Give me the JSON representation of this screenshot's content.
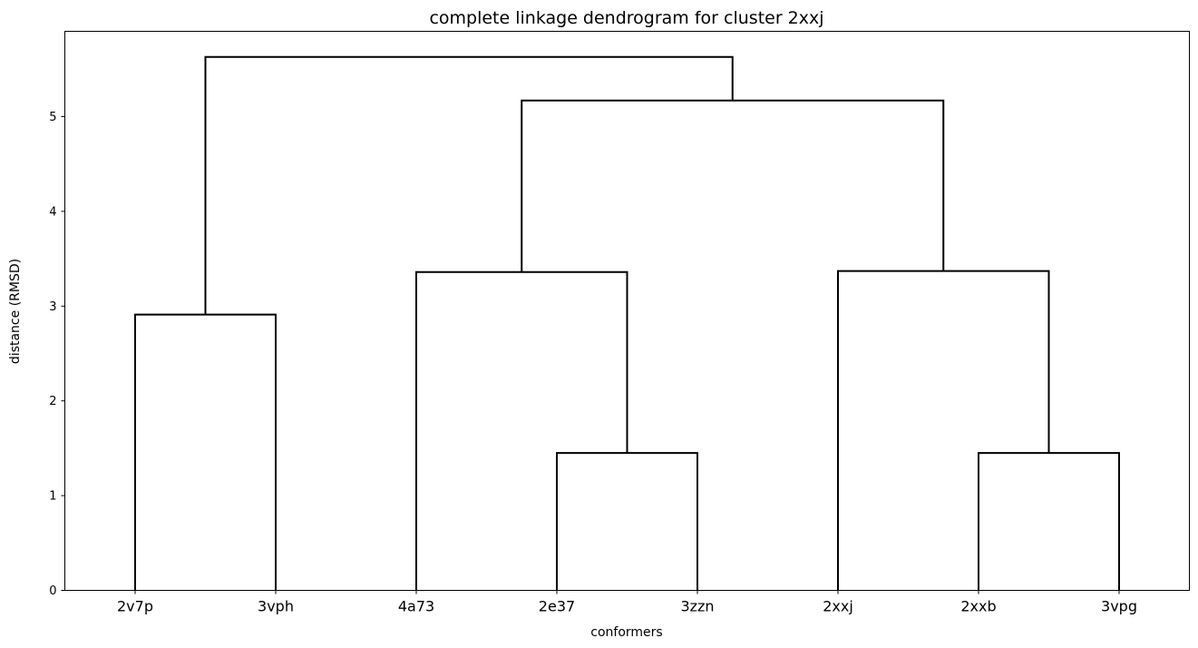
{
  "chart_data": {
    "type": "dendrogram",
    "title": "complete linkage dendrogram for cluster 2xxj",
    "xlabel": "conformers",
    "ylabel": "distance (RMSD)",
    "leaves": [
      "2v7p",
      "3vph",
      "4a73",
      "2e37",
      "3zzn",
      "2xxj",
      "2xxb",
      "3vpg"
    ],
    "yticks": [
      0,
      1,
      2,
      3,
      4,
      5
    ],
    "ylim": [
      0,
      5.9
    ],
    "line_color": "#000000",
    "grid": false,
    "merges": [
      {
        "left": "2v7p",
        "right": "3vph",
        "height": 2.91
      },
      {
        "left": "2e37",
        "right": "3zzn",
        "height": 1.45
      },
      {
        "left": "4a73",
        "right": "2e37+3zzn",
        "height": 3.36
      },
      {
        "left": "2xxb",
        "right": "3vpg",
        "height": 1.45
      },
      {
        "left": "2xxj",
        "right": "2xxb+3vpg",
        "height": 3.37
      },
      {
        "left": "4a73+2e37+3zzn",
        "right": "2xxj+2xxb+3vpg",
        "height": 5.17
      },
      {
        "left": "2v7p+3vph",
        "right": "4a73+2e37+3zzn+2xxj+2xxb+3vpg",
        "height": 5.63
      }
    ]
  }
}
